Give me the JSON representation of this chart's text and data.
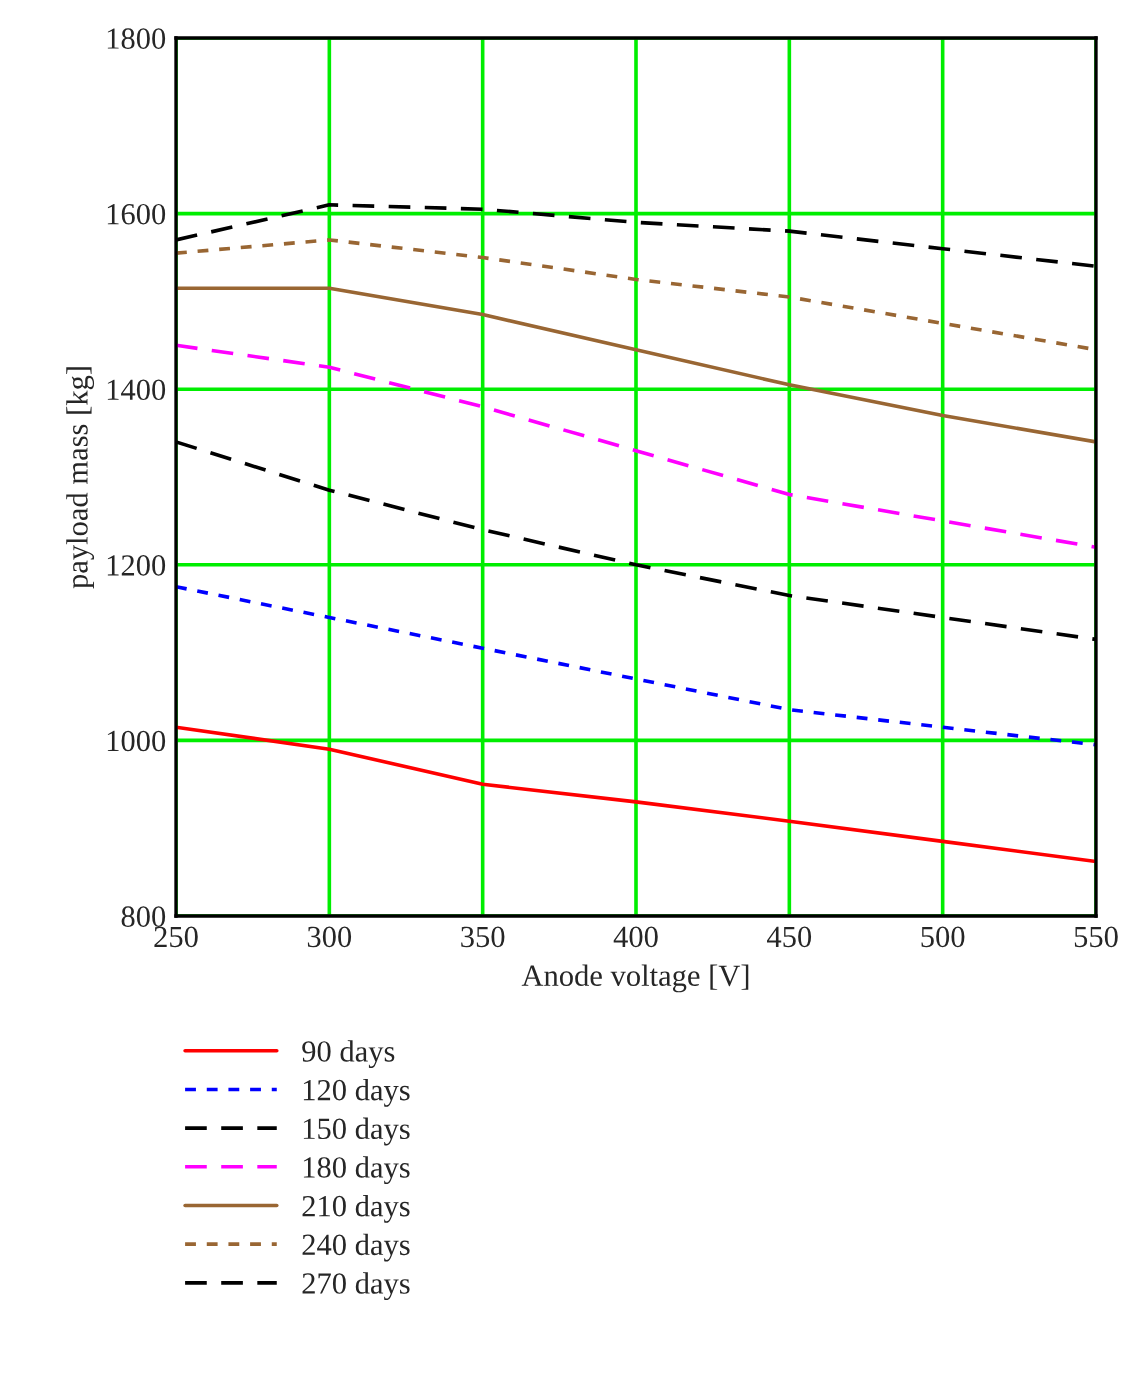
{
  "chart_data": {
    "type": "line",
    "xlabel": "Anode voltage [V]",
    "ylabel": "payload mass [kg]",
    "x": [
      250,
      300,
      350,
      400,
      450,
      500,
      550
    ],
    "xlim": [
      250,
      550
    ],
    "xticks": [
      250,
      300,
      350,
      400,
      450,
      500,
      550
    ],
    "ylim": [
      800,
      1800
    ],
    "yticks": [
      800,
      1000,
      1200,
      1400,
      1600,
      1800
    ],
    "grid": true,
    "legend": "bottom",
    "marker": "none",
    "series": [
      {
        "name": "90 days",
        "color": "#ff0000",
        "line_style": "solid",
        "values": [
          1015,
          990,
          950,
          930,
          908,
          885,
          862
        ]
      },
      {
        "name": "120 days",
        "color": "#0000ff",
        "line_style": "dotted",
        "values": [
          1175,
          1140,
          1105,
          1070,
          1035,
          1015,
          995
        ]
      },
      {
        "name": "150 days",
        "color": "#000000",
        "line_style": "dashed",
        "values": [
          1340,
          1285,
          1240,
          1200,
          1165,
          1140,
          1115
        ]
      },
      {
        "name": "180 days",
        "color": "#ff00ff",
        "line_style": "dashed",
        "values": [
          1450,
          1425,
          1380,
          1330,
          1280,
          1250,
          1220
        ]
      },
      {
        "name": "210 days",
        "color": "#996633",
        "line_style": "solid",
        "values": [
          1515,
          1515,
          1485,
          1445,
          1405,
          1370,
          1340
        ]
      },
      {
        "name": "240 days",
        "color": "#996633",
        "line_style": "dotted",
        "values": [
          1555,
          1570,
          1550,
          1525,
          1505,
          1475,
          1445
        ]
      },
      {
        "name": "270 days",
        "color": "#000000",
        "line_style": "dashed",
        "values": [
          1570,
          1610,
          1605,
          1590,
          1580,
          1560,
          1540
        ]
      }
    ]
  }
}
